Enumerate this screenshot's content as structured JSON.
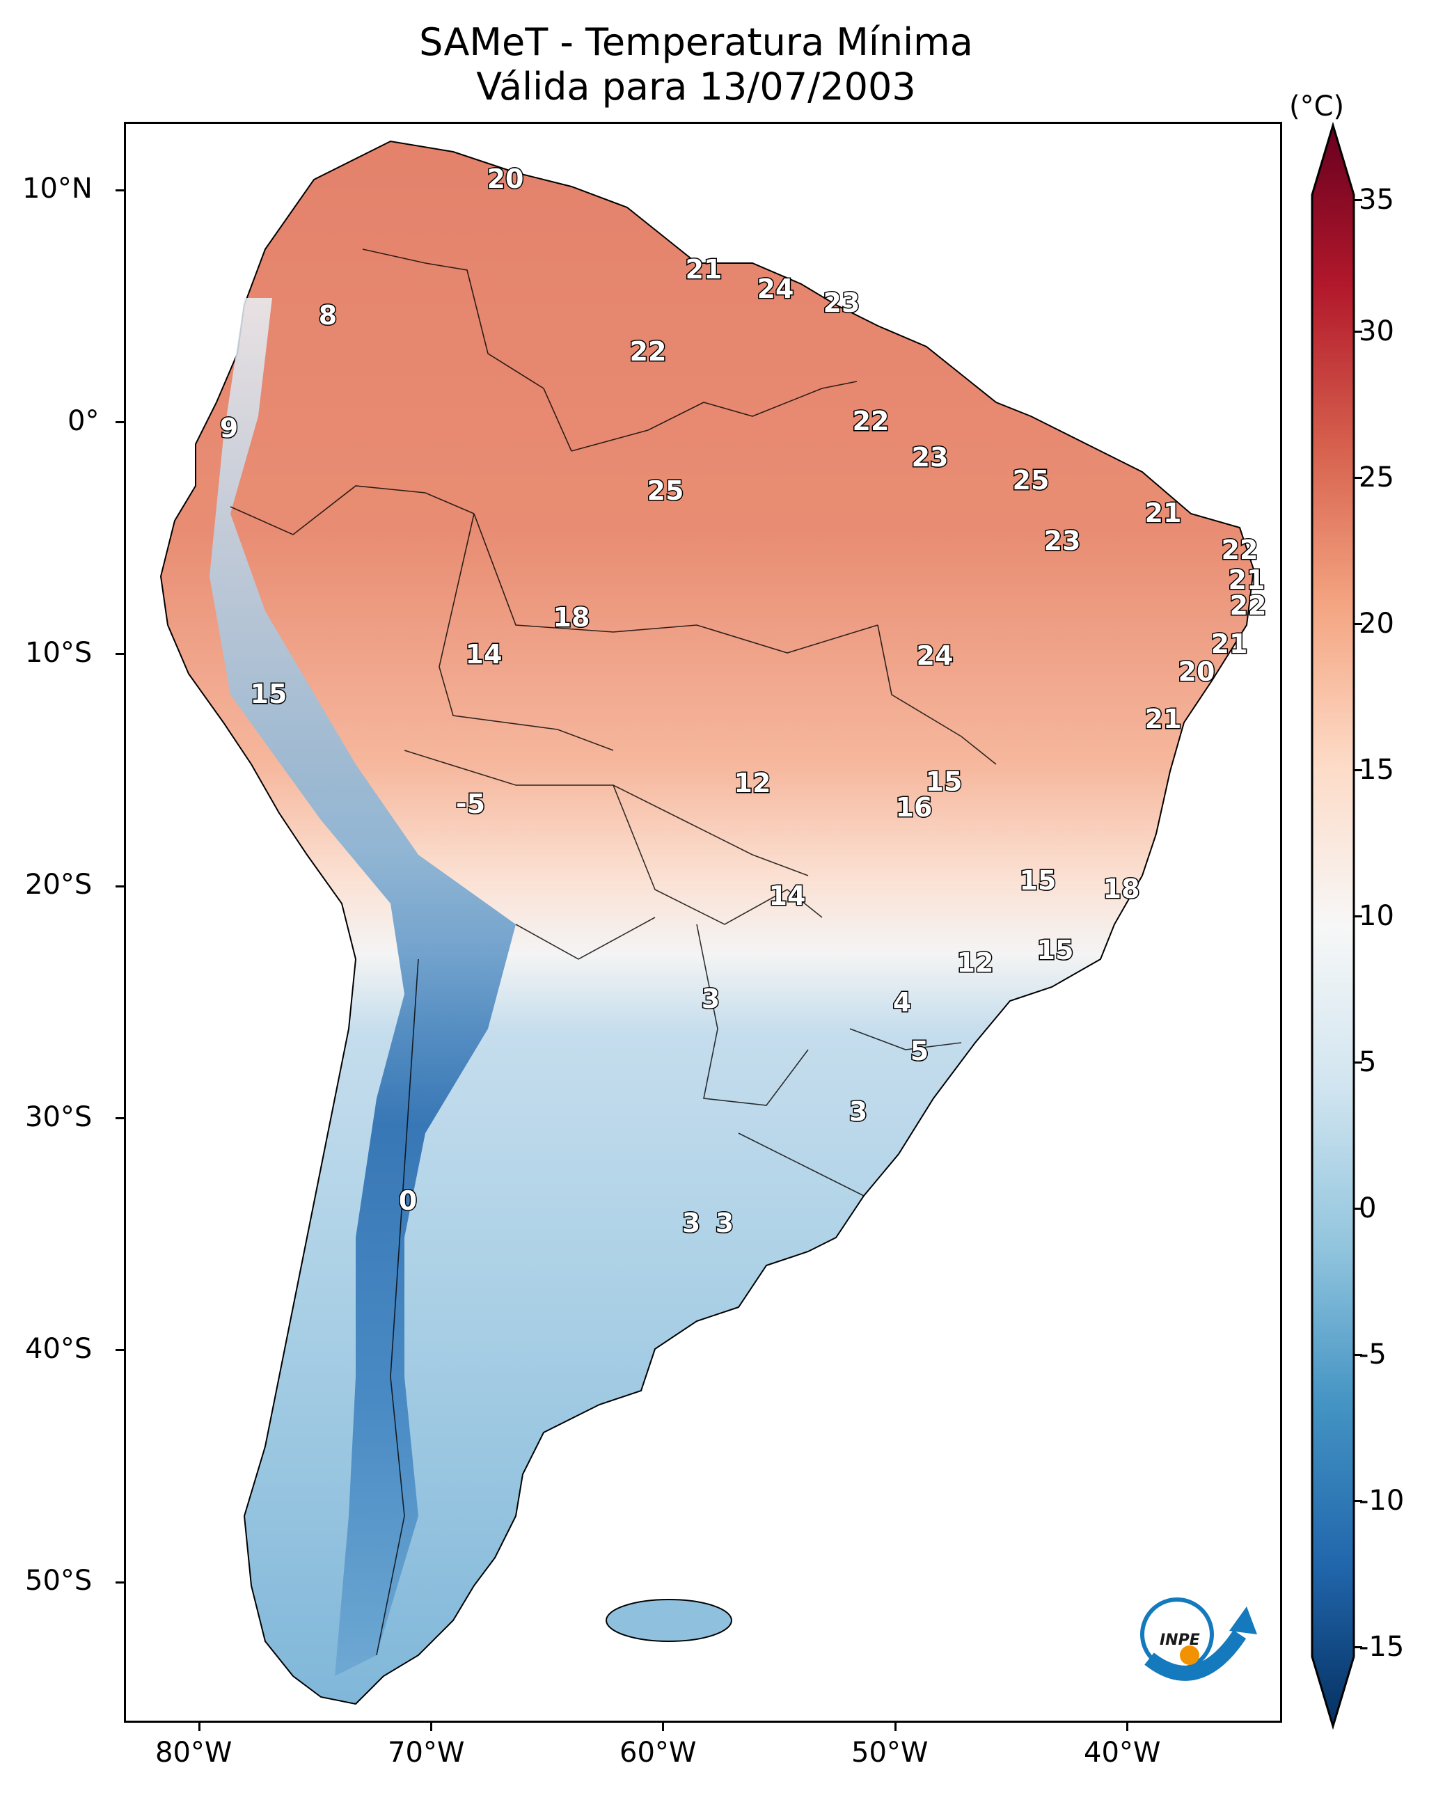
{
  "title": {
    "line1": "SAMeT - Temperatura Mínima",
    "line2": "Válida para 13/07/2003"
  },
  "colorbar": {
    "unit": "(°C)",
    "ticks": [
      "35",
      "30",
      "25",
      "20",
      "15",
      "10",
      "5",
      "0",
      "-5",
      "-10",
      "-15"
    ],
    "colors_top_to_bottom": [
      "#67001f",
      "#b2182b",
      "#d6604d",
      "#f4a582",
      "#fddbc7",
      "#f7f7f7",
      "#d1e5f0",
      "#92c5de",
      "#4393c3",
      "#2166ac",
      "#053061"
    ]
  },
  "axes": {
    "lon_labels": [
      "80°W",
      "70°W",
      "60°W",
      "50°W",
      "40°W"
    ],
    "lat_labels": [
      "10°N",
      "0°",
      "10°S",
      "20°S",
      "30°S",
      "40°S",
      "50°S"
    ]
  },
  "station_values": [
    "20",
    "21",
    "24",
    "23",
    "8",
    "22",
    "9",
    "22",
    "23",
    "25",
    "25",
    "21",
    "23",
    "22",
    "21",
    "22",
    "18",
    "14",
    "24",
    "21",
    "15",
    "20",
    "21",
    "12",
    "15",
    "16",
    "-5",
    "15",
    "14",
    "18",
    "12",
    "15",
    "3",
    "4",
    "5",
    "3",
    "0",
    "3",
    "3"
  ],
  "logo": {
    "text": "INPE",
    "colors": [
      "#1479bd",
      "#f39200"
    ]
  }
}
